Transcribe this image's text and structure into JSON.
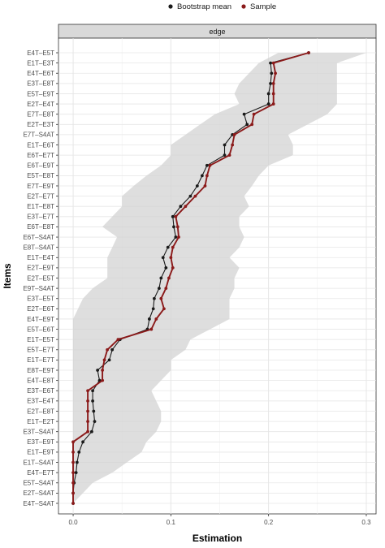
{
  "chart_data": {
    "type": "line",
    "facet": "edge",
    "xlabel": "Estimation",
    "ylabel": "Items",
    "xlim": [
      -0.015,
      0.31
    ],
    "xticks": [
      0.0,
      0.1,
      0.2,
      0.3
    ],
    "xtick_labels": [
      "0.0",
      "0.1",
      "0.2",
      "0.3"
    ],
    "grid": true,
    "legend_position": "top",
    "items": [
      "E4T–E5T",
      "E1T–E3T",
      "E4T–E6T",
      "E3T–E8T",
      "E5T–E9T",
      "E2T–E4T",
      "E7T–E8T",
      "E2T–E3T",
      "E7T–S4AT",
      "E1T–E6T",
      "E6T–E7T",
      "E6T–E9T",
      "E5T–E8T",
      "E7T–E9T",
      "E2T–E7T",
      "E1T–E8T",
      "E3T–E7T",
      "E6T–E8T",
      "E6T–S4AT",
      "E8T–S4AT",
      "E1T–E4T",
      "E2T–E9T",
      "E2T–E5T",
      "E9T–S4AT",
      "E3T–E5T",
      "E2T–E6T",
      "E4T–E9T",
      "E5T–E6T",
      "E1T–E5T",
      "E5T–E7T",
      "E1T–E7T",
      "E8T–E9T",
      "E4T–E8T",
      "E3T–E6T",
      "E3T–E4T",
      "E2T–E8T",
      "E1T–E2T",
      "E3T–S4AT",
      "E3T–E9T",
      "E1T–E9T",
      "E1T–S4AT",
      "E4T–E7T",
      "E5T–S4AT",
      "E2T–S4AT",
      "E4T–S4AT"
    ],
    "series": [
      {
        "name": "Bootstrap mean",
        "color": "#1a1a1a",
        "values": [
          0.241,
          0.202,
          0.203,
          0.202,
          0.2,
          0.2,
          0.175,
          0.178,
          0.163,
          0.155,
          0.155,
          0.137,
          0.132,
          0.127,
          0.12,
          0.11,
          0.102,
          0.103,
          0.105,
          0.097,
          0.092,
          0.095,
          0.09,
          0.088,
          0.083,
          0.082,
          0.078,
          0.076,
          0.048,
          0.04,
          0.037,
          0.025,
          0.027,
          0.02,
          0.02,
          0.021,
          0.022,
          0.019,
          0.01,
          0.006,
          0.004,
          0.003,
          0.001,
          0.0,
          0.0
        ]
      },
      {
        "name": "Sample",
        "color": "#8b1a1a",
        "values": [
          0.241,
          0.205,
          0.207,
          0.205,
          0.205,
          0.205,
          0.185,
          0.183,
          0.165,
          0.163,
          0.16,
          0.14,
          0.137,
          0.135,
          0.125,
          0.115,
          0.105,
          0.107,
          0.108,
          0.102,
          0.1,
          0.102,
          0.098,
          0.095,
          0.09,
          0.093,
          0.085,
          0.08,
          0.046,
          0.035,
          0.032,
          0.03,
          0.03,
          0.015,
          0.015,
          0.015,
          0.015,
          0.015,
          0.0,
          0.0,
          0.0,
          0.0,
          0.0,
          0.0,
          0.0
        ]
      }
    ],
    "band": {
      "lower": [
        0.21,
        0.19,
        0.18,
        0.17,
        0.165,
        0.17,
        0.145,
        0.13,
        0.115,
        0.1,
        0.1,
        0.09,
        0.075,
        0.062,
        0.05,
        0.05,
        0.04,
        0.03,
        0.045,
        0.04,
        0.035,
        0.035,
        0.035,
        0.02,
        0.01,
        0.005,
        0.0,
        0.0,
        0.0,
        0.0,
        0.0,
        0.0,
        0.0,
        0.0,
        0.0,
        0.0,
        0.0,
        0.0,
        0.0,
        0.0,
        0.0,
        0.0,
        0.0,
        0.0,
        0.0
      ],
      "upper": [
        0.3,
        0.27,
        0.27,
        0.27,
        0.27,
        0.27,
        0.26,
        0.24,
        0.22,
        0.225,
        0.225,
        0.2,
        0.19,
        0.183,
        0.175,
        0.18,
        0.17,
        0.17,
        0.175,
        0.17,
        0.16,
        0.17,
        0.165,
        0.165,
        0.16,
        0.16,
        0.16,
        0.14,
        0.12,
        0.115,
        0.1,
        0.1,
        0.09,
        0.08,
        0.085,
        0.09,
        0.09,
        0.085,
        0.075,
        0.07,
        0.055,
        0.04,
        0.02,
        0.01,
        0.0
      ]
    }
  }
}
